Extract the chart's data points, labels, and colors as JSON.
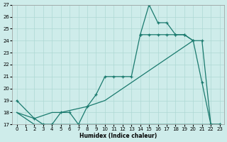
{
  "xlabel": "Humidex (Indice chaleur)",
  "bg_color": "#ceecea",
  "grid_color": "#aed8d4",
  "line_color": "#1a7a6e",
  "xlim": [
    -0.5,
    23.5
  ],
  "ylim": [
    17,
    27
  ],
  "yticks": [
    17,
    18,
    19,
    20,
    21,
    22,
    23,
    24,
    25,
    26,
    27
  ],
  "xticks": [
    0,
    1,
    2,
    3,
    4,
    5,
    6,
    7,
    8,
    9,
    10,
    11,
    12,
    13,
    14,
    15,
    16,
    17,
    18,
    19,
    20,
    21,
    22,
    23
  ],
  "curve1_x": [
    0,
    2,
    3,
    4,
    5,
    6,
    7,
    8,
    9,
    10,
    11,
    12,
    13,
    14,
    22,
    23
  ],
  "curve1_y": [
    18,
    17,
    17,
    17,
    17,
    17,
    17,
    17,
    17,
    17,
    17,
    17,
    17,
    17,
    17,
    17
  ],
  "curve2_x": [
    0,
    2,
    4,
    5,
    8,
    10,
    12,
    14,
    16,
    18,
    20
  ],
  "curve2_y": [
    18,
    17.5,
    18,
    18,
    18.5,
    19,
    20,
    21,
    22,
    23,
    24
  ],
  "curve3_x": [
    0,
    2,
    3,
    4,
    5,
    6,
    7,
    8,
    9,
    10,
    11,
    12,
    13,
    14,
    15,
    16,
    17,
    18,
    19,
    20,
    21,
    22,
    23
  ],
  "curve3_y": [
    19,
    17.5,
    17,
    17,
    18,
    18,
    17,
    18.5,
    19.5,
    21,
    21,
    21,
    21,
    24.5,
    24.5,
    24.5,
    24.5,
    24.5,
    24.5,
    24,
    20.5,
    17,
    17
  ],
  "curve4_x": [
    14,
    15,
    16,
    17,
    18,
    19,
    20,
    21,
    22,
    23
  ],
  "curve4_y": [
    24.5,
    27,
    25.5,
    25.5,
    24.5,
    24.5,
    24,
    24,
    17,
    17
  ]
}
